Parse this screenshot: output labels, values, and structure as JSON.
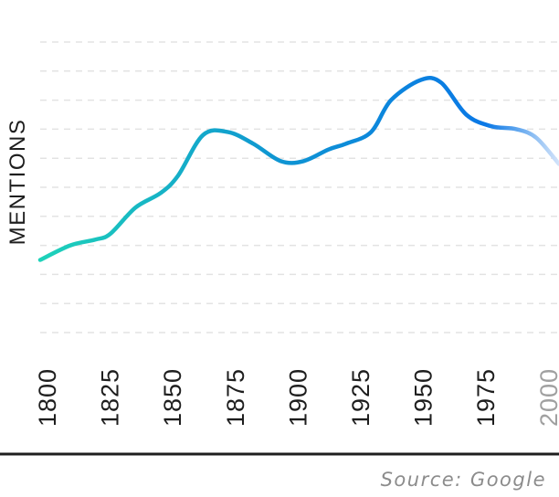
{
  "chart_data": {
    "type": "line",
    "ylabel": "MENTIONS",
    "xlabel": "",
    "x_ticks": [
      "1800",
      "1825",
      "1850",
      "1875",
      "1900",
      "1925",
      "1950",
      "1975",
      "2000"
    ],
    "xlim": [
      1800,
      2007
    ],
    "ylim": [
      0,
      10
    ],
    "grid": true,
    "series": [
      {
        "x": [
          1800,
          1812,
          1822,
          1828,
          1838,
          1848,
          1855,
          1865,
          1875,
          1885,
          1896,
          1905,
          1915,
          1922,
          1932,
          1940,
          1952,
          1960,
          1970,
          1980,
          1990,
          1998,
          2007
        ],
        "y": [
          2.5,
          3.0,
          3.2,
          3.4,
          4.3,
          4.8,
          5.4,
          6.8,
          6.9,
          6.5,
          5.9,
          5.9,
          6.3,
          6.5,
          6.9,
          8.0,
          8.7,
          8.6,
          7.5,
          7.1,
          7.0,
          6.7,
          5.8
        ]
      }
    ],
    "colors": {
      "line_start": "#1ed2b9",
      "line_mid": "#0f96d2",
      "line_end": "#0a78e6",
      "line_fade": "#d4e4fa",
      "future_tick": "#a0a0a0",
      "axis_line": "#1e1e1e",
      "grid": "#e3e3e3"
    }
  },
  "footer": {
    "source": "Source: Google"
  }
}
